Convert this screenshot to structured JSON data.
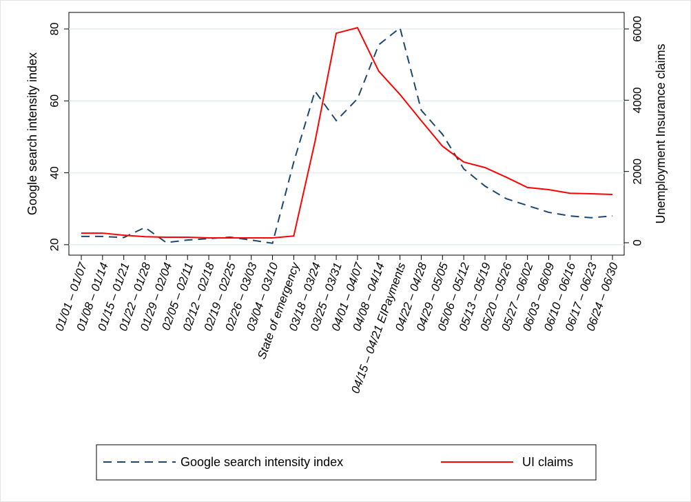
{
  "chart_data": {
    "type": "line",
    "categories": [
      "01/01 – 01/07",
      "01/08 – 01/14",
      "01/15 – 01/21",
      "01/22 – 01/28",
      "01/29 – 02/04",
      "02/05 – 02/11",
      "02/12 – 02/18",
      "02/19 – 02/25",
      "02/26 – 03/03",
      "03/04 – 03/10",
      "State of emergency",
      "03/18 – 03/24",
      "03/25 – 03/31",
      "04/01 – 04/07",
      "04/08 – 04/14",
      "04/15 – 04/21 EIPayments",
      "04/22 – 04/28",
      "04/29 – 05/05",
      "05/06 – 05/12",
      "05/13 – 05/19",
      "05/20 – 05/26",
      "05/27 – 06/02",
      "06/03 – 06/09",
      "06/10 – 06/16",
      "06/17 – 06/23",
      "06/24 – 06/30"
    ],
    "ylabel": "Google search intensity index",
    "y2label": "Unemployment Insurance claims",
    "ylim": [
      17.1,
      84.6
    ],
    "yticks": [
      20,
      40,
      60,
      80
    ],
    "y2lim": [
      -348,
      6464
    ],
    "y2ticks": [
      0,
      2000,
      4000,
      6000
    ],
    "grid": true,
    "series": [
      {
        "name": "Google search intensity index",
        "color": "#1a476f",
        "style": "dashed",
        "axis": "y",
        "values": [
          22.3,
          22.3,
          22,
          24.8,
          20.6,
          21.3,
          21.7,
          22.1,
          21.3,
          20.4,
          43,
          62.7,
          54.5,
          60.6,
          75.6,
          80.3,
          57.4,
          50.7,
          41.1,
          36.3,
          32.8,
          30.9,
          29,
          28,
          27.5,
          28
        ]
      },
      {
        "name": "UI claims",
        "color": "#ff0000",
        "style": "solid",
        "axis": "y2",
        "values": [
          270,
          270,
          210,
          170,
          155,
          155,
          135,
          135,
          135,
          135,
          190,
          2840,
          5880,
          6035,
          4815,
          4160,
          3425,
          2710,
          2265,
          2110,
          1840,
          1550,
          1490,
          1390,
          1375,
          1355
        ]
      }
    ]
  }
}
